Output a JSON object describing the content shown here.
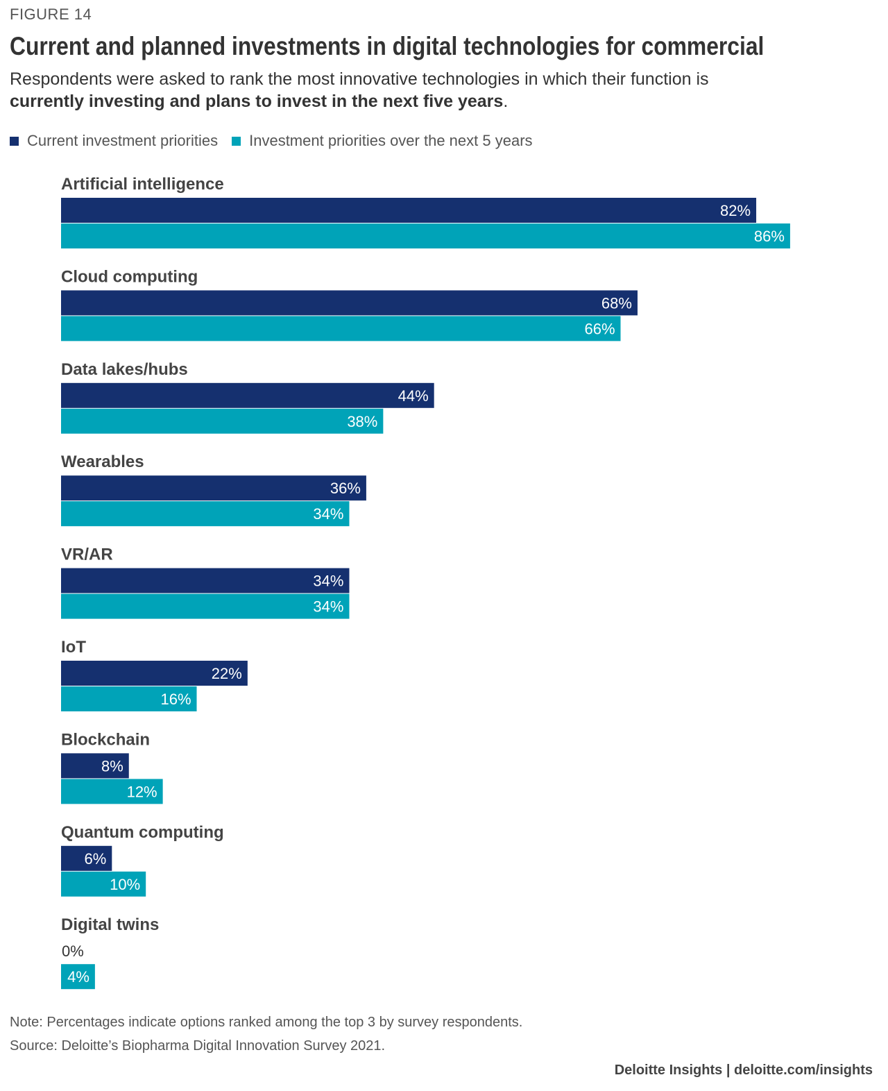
{
  "figure_label": "FIGURE 14",
  "title": "Current and planned investments in digital technologies for commercial",
  "subtitle_part1": "Respondents were asked to rank the most innovative technologies in which their function is",
  "subtitle_part2_bold": "currently investing and plans to invest in the next five years",
  "subtitle_part3": ".",
  "legend": {
    "current": "Current investment priorities",
    "future": "Investment priorities over the next 5 years"
  },
  "colors": {
    "current": "#15306f",
    "future": "#00a3b8"
  },
  "note": "Note: Percentages indicate options ranked among the top 3 by survey respondents.",
  "source": "Source: Deloitte’s Biopharma Digital Innovation Survey 2021.",
  "footer": "Deloitte Insights | deloitte.com/insights",
  "chart_data": {
    "type": "bar",
    "orientation": "horizontal",
    "categories": [
      "Artificial intelligence",
      "Cloud computing",
      "Data lakes/hubs",
      "Wearables",
      "VR/AR",
      "IoT",
      "Blockchain",
      "Quantum computing",
      "Digital twins"
    ],
    "series": [
      {
        "name": "Current investment priorities",
        "values": [
          82,
          68,
          44,
          36,
          34,
          22,
          8,
          6,
          0
        ]
      },
      {
        "name": "Investment priorities over the next 5 years",
        "values": [
          86,
          66,
          38,
          34,
          34,
          16,
          12,
          10,
          4
        ]
      }
    ],
    "value_suffix": "%",
    "xlim": [
      0,
      100
    ],
    "grid": false,
    "legend_position": "top-left"
  }
}
